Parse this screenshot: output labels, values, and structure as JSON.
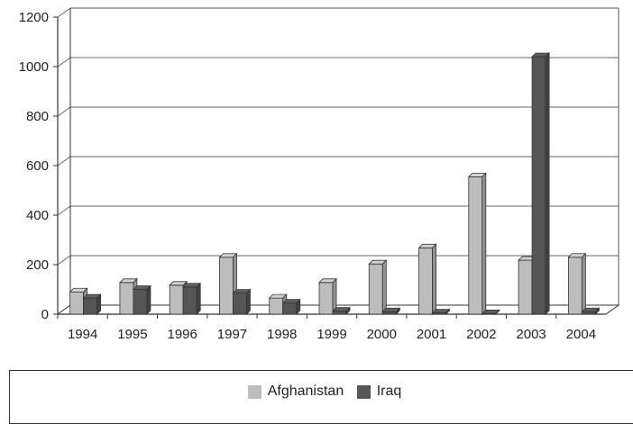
{
  "chart_data": {
    "type": "bar",
    "title": "",
    "xlabel": "",
    "ylabel": "",
    "categories": [
      "1994",
      "1995",
      "1996",
      "1997",
      "1998",
      "1999",
      "2000",
      "2001",
      "2002",
      "2003",
      "2004"
    ],
    "series": [
      {
        "name": "Afghanistan",
        "color": "#bdbdbd",
        "values": [
          90,
          128,
          117,
          230,
          65,
          128,
          203,
          268,
          555,
          218,
          230
        ]
      },
      {
        "name": "Iraq",
        "color": "#555555",
        "values": [
          65,
          100,
          110,
          85,
          45,
          12,
          10,
          5,
          2,
          1040,
          10
        ]
      }
    ],
    "yticks": [
      0,
      200,
      400,
      600,
      800,
      1000,
      1200
    ],
    "ylim": [
      0,
      1200
    ],
    "grid": true,
    "legend": "bottom"
  }
}
